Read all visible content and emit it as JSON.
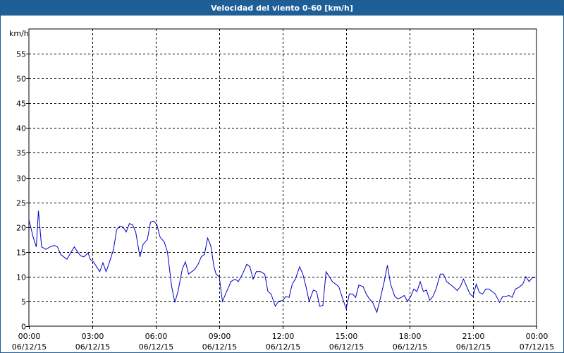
{
  "window": {
    "title": "Velocidad del viento 0-60 [km/h]"
  },
  "chart_data": {
    "type": "line",
    "title": "Velocidad del viento 0-60 [km/h]",
    "ylabel": "km/h",
    "xlabel": "",
    "ylim": [
      0,
      60
    ],
    "xlim_hours": [
      0,
      24
    ],
    "grid": true,
    "y_ticks": [
      0,
      5,
      10,
      15,
      20,
      25,
      30,
      35,
      40,
      45,
      50,
      55
    ],
    "x_ticks": [
      {
        "time": "00:00",
        "date": "06/12/15"
      },
      {
        "time": "03:00",
        "date": "06/12/15"
      },
      {
        "time": "06:00",
        "date": "06/12/15"
      },
      {
        "time": "09:00",
        "date": "06/12/15"
      },
      {
        "time": "12:00",
        "date": "06/12/15"
      },
      {
        "time": "15:00",
        "date": "06/12/15"
      },
      {
        "time": "18:00",
        "date": "06/12/15"
      },
      {
        "time": "21:00",
        "date": "06/12/15"
      },
      {
        "time": "00:00",
        "date": "07/12/15"
      }
    ],
    "series": [
      {
        "color": "#0000c8",
        "points": [
          [
            0.0,
            21.5
          ],
          [
            0.2,
            18
          ],
          [
            0.35,
            16
          ],
          [
            0.45,
            23.3
          ],
          [
            0.6,
            16
          ],
          [
            0.8,
            15.5
          ],
          [
            1.0,
            16
          ],
          [
            1.2,
            16.3
          ],
          [
            1.35,
            16
          ],
          [
            1.5,
            14.5
          ],
          [
            1.65,
            14
          ],
          [
            1.8,
            13.5
          ],
          [
            2.0,
            15
          ],
          [
            2.15,
            16
          ],
          [
            2.3,
            15
          ],
          [
            2.45,
            14.2
          ],
          [
            2.6,
            14
          ],
          [
            2.8,
            14.8
          ],
          [
            2.9,
            13.5
          ],
          [
            3.05,
            13
          ],
          [
            3.2,
            12
          ],
          [
            3.35,
            11
          ],
          [
            3.5,
            12.8
          ],
          [
            3.65,
            11
          ],
          [
            3.8,
            12.8
          ],
          [
            4.0,
            15.5
          ],
          [
            4.15,
            19.5
          ],
          [
            4.3,
            20.2
          ],
          [
            4.45,
            20
          ],
          [
            4.6,
            19
          ],
          [
            4.75,
            20.7
          ],
          [
            4.9,
            20.5
          ],
          [
            5.05,
            19
          ],
          [
            5.25,
            14
          ],
          [
            5.4,
            16.5
          ],
          [
            5.6,
            17.5
          ],
          [
            5.75,
            21
          ],
          [
            5.9,
            21.2
          ],
          [
            6.05,
            20.5
          ],
          [
            6.2,
            18
          ],
          [
            6.4,
            17
          ],
          [
            6.55,
            15
          ],
          [
            6.75,
            8
          ],
          [
            6.9,
            4.8
          ],
          [
            7.05,
            7
          ],
          [
            7.25,
            11.5
          ],
          [
            7.4,
            13
          ],
          [
            7.55,
            10.5
          ],
          [
            7.7,
            11
          ],
          [
            7.85,
            11.5
          ],
          [
            8.0,
            12.5
          ],
          [
            8.15,
            14
          ],
          [
            8.3,
            14.5
          ],
          [
            8.45,
            17.8
          ],
          [
            8.6,
            16.2
          ],
          [
            8.75,
            12
          ],
          [
            8.85,
            10.5
          ],
          [
            9.0,
            10
          ],
          [
            9.15,
            5
          ],
          [
            9.35,
            7
          ],
          [
            9.55,
            9
          ],
          [
            9.75,
            9.5
          ],
          [
            9.9,
            9
          ],
          [
            10.1,
            10.5
          ],
          [
            10.3,
            12.5
          ],
          [
            10.45,
            12
          ],
          [
            10.6,
            9.5
          ],
          [
            10.75,
            11
          ],
          [
            10.95,
            11
          ],
          [
            11.15,
            10.5
          ],
          [
            11.3,
            7
          ],
          [
            11.45,
            6.5
          ],
          [
            11.65,
            4
          ],
          [
            11.8,
            5
          ],
          [
            12.0,
            5.2
          ],
          [
            12.15,
            6
          ],
          [
            12.3,
            5.8
          ],
          [
            12.45,
            8.5
          ],
          [
            12.6,
            9.5
          ],
          [
            12.8,
            12
          ],
          [
            12.95,
            10.5
          ],
          [
            13.1,
            8
          ],
          [
            13.25,
            5
          ],
          [
            13.45,
            7.3
          ],
          [
            13.6,
            7
          ],
          [
            13.75,
            4
          ],
          [
            13.9,
            4.2
          ],
          [
            14.05,
            11
          ],
          [
            14.2,
            10
          ],
          [
            14.35,
            9
          ],
          [
            14.5,
            8.5
          ],
          [
            14.65,
            8
          ],
          [
            14.8,
            6
          ],
          [
            15.0,
            3.5
          ],
          [
            15.15,
            6.5
          ],
          [
            15.3,
            6.5
          ],
          [
            15.45,
            5.8
          ],
          [
            15.6,
            8.3
          ],
          [
            15.8,
            8
          ],
          [
            15.95,
            6.5
          ],
          [
            16.1,
            5.5
          ],
          [
            16.25,
            4.8
          ],
          [
            16.45,
            2.8
          ],
          [
            16.6,
            5.3
          ],
          [
            16.8,
            9
          ],
          [
            16.95,
            12.3
          ],
          [
            17.1,
            8.5
          ],
          [
            17.3,
            6
          ],
          [
            17.45,
            5.5
          ],
          [
            17.6,
            5.8
          ],
          [
            17.75,
            6.2
          ],
          [
            17.9,
            5
          ],
          [
            18.05,
            6
          ],
          [
            18.2,
            7.5
          ],
          [
            18.35,
            7
          ],
          [
            18.5,
            9
          ],
          [
            18.65,
            7
          ],
          [
            18.8,
            7.3
          ],
          [
            18.95,
            5.2
          ],
          [
            19.1,
            6
          ],
          [
            19.25,
            7.5
          ],
          [
            19.45,
            10.5
          ],
          [
            19.6,
            10.5
          ],
          [
            19.75,
            9
          ],
          [
            19.9,
            8.5
          ],
          [
            20.05,
            8
          ],
          [
            20.25,
            7.2
          ],
          [
            20.4,
            8
          ],
          [
            20.55,
            9.5
          ],
          [
            20.7,
            8
          ],
          [
            20.85,
            6.5
          ],
          [
            21.0,
            6
          ],
          [
            21.15,
            8.5
          ],
          [
            21.3,
            6.8
          ],
          [
            21.45,
            6.5
          ],
          [
            21.6,
            7.5
          ],
          [
            21.75,
            7.5
          ],
          [
            21.9,
            7
          ],
          [
            22.05,
            6.5
          ],
          [
            22.25,
            4.8
          ],
          [
            22.4,
            6
          ],
          [
            22.55,
            6
          ],
          [
            22.7,
            6.2
          ],
          [
            22.85,
            5.8
          ],
          [
            23.0,
            7.5
          ],
          [
            23.15,
            7.8
          ],
          [
            23.35,
            8.5
          ],
          [
            23.5,
            10
          ],
          [
            23.65,
            9
          ],
          [
            23.8,
            9.8
          ],
          [
            23.95,
            9.8
          ]
        ]
      }
    ]
  }
}
